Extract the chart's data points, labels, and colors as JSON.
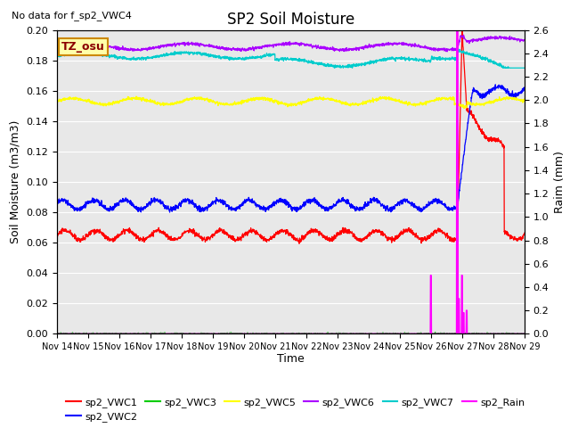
{
  "title": "SP2 Soil Moisture",
  "subtitle": "No data for f_sp2_VWC4",
  "xlabel": "Time",
  "ylabel_left": "Soil Moisture (m3/m3)",
  "ylabel_right": "Raim (mm)",
  "annotation": "TZ_osu",
  "ylim_left": [
    0,
    0.2
  ],
  "ylim_right": [
    0,
    2.6
  ],
  "yticks_left": [
    0.0,
    0.02,
    0.04,
    0.06,
    0.08,
    0.1,
    0.12,
    0.14,
    0.16,
    0.18,
    0.2
  ],
  "yticks_right": [
    0.0,
    0.2,
    0.4,
    0.6,
    0.8,
    1.0,
    1.2,
    1.4,
    1.6,
    1.8,
    2.0,
    2.2,
    2.4,
    2.6
  ],
  "xtick_labels": [
    "Nov 14",
    "Nov 15",
    "Nov 16",
    "Nov 17",
    "Nov 18",
    "Nov 19",
    "Nov 20",
    "Nov 21",
    "Nov 22",
    "Nov 23",
    "Nov 24",
    "Nov 25",
    "Nov 26",
    "Nov 27",
    "Nov 28",
    "Nov 29"
  ],
  "colors": {
    "VWC1": "#ff0000",
    "VWC2": "#0000ff",
    "VWC3": "#00cc00",
    "VWC5": "#ffff00",
    "VWC6": "#aa00ff",
    "VWC7": "#00cccc",
    "Rain": "#ff00ff"
  },
  "bg_color": "#e8e8e8",
  "vwc1_base": 0.065,
  "vwc1_amp": 0.003,
  "vwc2_base": 0.085,
  "vwc2_amp": 0.003,
  "vwc3_base": 0.0,
  "vwc5_base": 0.153,
  "vwc5_amp": 0.002,
  "vwc6_base": 0.189,
  "vwc6_amp": 0.002,
  "vwc7_base": 0.183,
  "vwc7_amp": 0.002,
  "event_day": 12.85,
  "n_points": 2000
}
